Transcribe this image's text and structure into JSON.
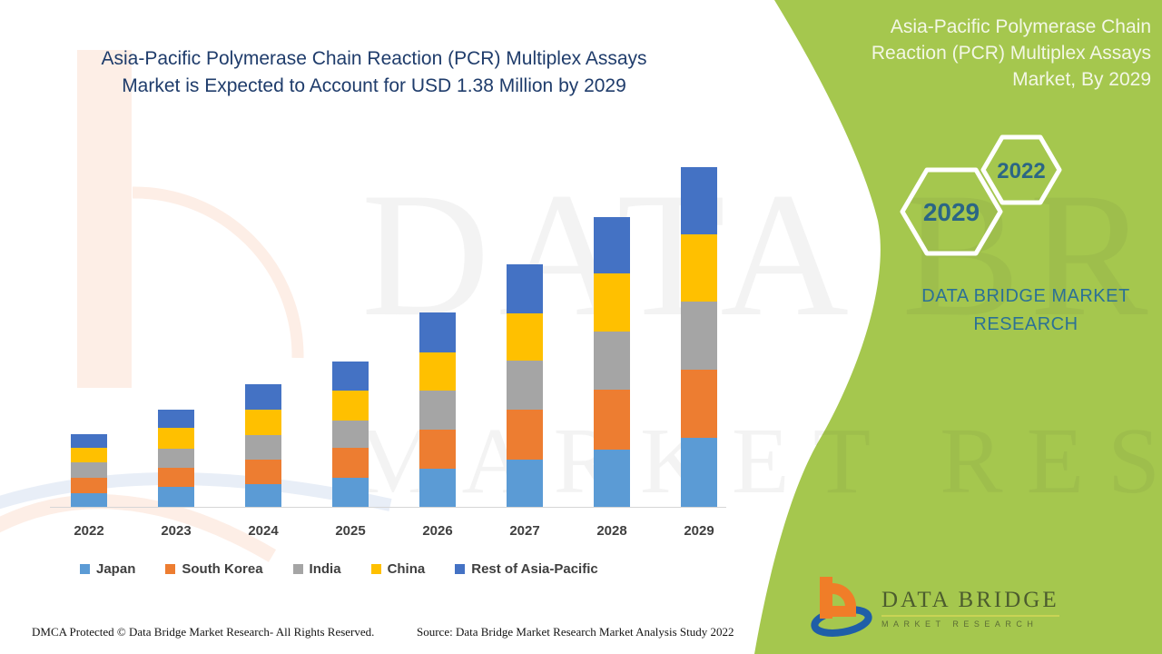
{
  "page": {
    "title_line1": "Asia-Pacific Polymerase Chain Reaction (PCR) Multiplex Assays",
    "title_line2": "Market is Expected to Account for USD 1.38 Million by 2029"
  },
  "side_panel": {
    "title_lines": [
      "Asia-Pacific Polymerase Chain",
      "Reaction (PCR) Multiplex Assays",
      "Market, By 2029"
    ],
    "hexagon_years": {
      "large": "2029",
      "small": "2022"
    },
    "brand_lines": [
      "DATA BRIDGE MARKET",
      "RESEARCH"
    ],
    "logo": {
      "name": "DATA BRIDGE",
      "subtitle": "MARKET RESEARCH"
    }
  },
  "watermarks": {
    "row1": "DATA BRIDGE",
    "row2": "MARKET RESEARCH"
  },
  "footer": {
    "dmca": "DMCA Protected © Data Bridge Market Research- All Rights Reserved.",
    "source": "Source: Data Bridge Market Research Market Analysis Study 2022"
  },
  "colors": {
    "panel_green": "#a5c74e",
    "title_navy": "#1f3c6b",
    "hexagon_text": "#2b6685",
    "brand_text": "#2c7195",
    "logo_orange": "#f07d28",
    "logo_blue": "#1f5ea8",
    "axis_text": "#3f3f3f"
  },
  "chart_data": {
    "type": "bar",
    "stacked": true,
    "title": "Asia-Pacific Polymerase Chain Reaction (PCR) Multiplex Assays Market is Expected to Account for USD 1.38 Million by 2029",
    "unit": "USD Million",
    "categories": [
      "2022",
      "2023",
      "2024",
      "2025",
      "2026",
      "2027",
      "2028",
      "2029"
    ],
    "series": [
      {
        "name": "Japan",
        "color": "#5B9BD5",
        "values": [
          0.055,
          0.08,
          0.092,
          0.117,
          0.156,
          0.193,
          0.231,
          0.279
        ]
      },
      {
        "name": "South Korea",
        "color": "#ED7D31",
        "values": [
          0.062,
          0.077,
          0.101,
          0.123,
          0.158,
          0.204,
          0.245,
          0.277
        ]
      },
      {
        "name": "India",
        "color": "#A5A5A5",
        "values": [
          0.061,
          0.076,
          0.098,
          0.111,
          0.16,
          0.199,
          0.237,
          0.278
        ]
      },
      {
        "name": "China",
        "color": "#FFC000",
        "values": [
          0.058,
          0.086,
          0.102,
          0.12,
          0.154,
          0.191,
          0.237,
          0.273
        ]
      },
      {
        "name": "Rest of Asia-Pacific",
        "color": "#4472C4",
        "values": [
          0.056,
          0.074,
          0.102,
          0.119,
          0.163,
          0.2,
          0.23,
          0.273
        ]
      }
    ],
    "totals_estimated": [
      0.29,
      0.39,
      0.5,
      0.59,
      0.79,
      0.99,
      1.18,
      1.38
    ],
    "labeled_value": {
      "year": "2029",
      "total": "USD 1.38 Million"
    },
    "ylim": [
      0,
      1.45
    ],
    "grid": false,
    "y_axis_shown": false,
    "legend_position": "bottom"
  }
}
